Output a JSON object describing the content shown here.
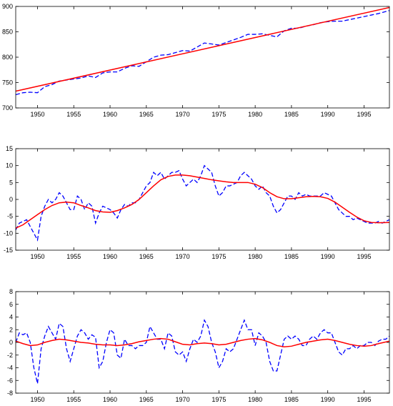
{
  "chart_data": [
    {
      "type": "line",
      "title": "",
      "xlabel": "",
      "ylabel": "",
      "xlim": [
        1947,
        1998.5
      ],
      "ylim": [
        700,
        900
      ],
      "xticks": [
        1950,
        1955,
        1960,
        1965,
        1970,
        1975,
        1980,
        1985,
        1990,
        1995
      ],
      "yticks": [
        700,
        750,
        800,
        850,
        900
      ],
      "xtick_labels": [
        "1950",
        "1955",
        "1960",
        "1965",
        "1970",
        "1975",
        "1980",
        "1985",
        "1990",
        "1995"
      ],
      "ytick_labels": [
        "700",
        "750",
        "800",
        "850",
        "900"
      ],
      "grid": false,
      "legend": "none",
      "series": [
        {
          "style": "dashed",
          "color": "#0000ff",
          "x": [
            1947,
            1948,
            1949,
            1950,
            1951,
            1952,
            1953,
            1954,
            1955,
            1956,
            1957,
            1958,
            1959,
            1960,
            1961,
            1962,
            1963,
            1964,
            1965,
            1966,
            1967,
            1968,
            1969,
            1970,
            1971,
            1972,
            1973,
            1974,
            1975,
            1976,
            1977,
            1978,
            1979,
            1980,
            1981,
            1982,
            1983,
            1984,
            1985,
            1986,
            1987,
            1988,
            1989,
            1990,
            1991,
            1992,
            1993,
            1994,
            1995,
            1996,
            1997,
            1998.5
          ],
          "y": [
            726,
            730,
            731,
            730,
            742,
            746,
            753,
            755,
            757,
            759,
            763,
            760,
            769,
            771,
            771,
            778,
            783,
            782,
            791,
            800,
            804,
            805,
            809,
            813,
            812,
            820,
            828,
            826,
            824,
            829,
            834,
            839,
            845,
            845,
            846,
            843,
            840,
            852,
            857,
            857,
            861,
            864,
            868,
            870,
            871,
            871,
            874,
            877,
            880,
            883,
            886,
            892
          ]
        },
        {
          "style": "solid",
          "color": "#ff0000",
          "x": [
            1947,
            1998.5
          ],
          "y": [
            733,
            898
          ]
        }
      ]
    },
    {
      "type": "line",
      "title": "",
      "xlabel": "",
      "ylabel": "",
      "xlim": [
        1947,
        1998.5
      ],
      "ylim": [
        -15,
        15
      ],
      "xticks": [
        1950,
        1955,
        1960,
        1965,
        1970,
        1975,
        1980,
        1985,
        1990,
        1995
      ],
      "yticks": [
        -15,
        -10,
        -5,
        0,
        5,
        10,
        15
      ],
      "xtick_labels": [
        "1950",
        "1955",
        "1960",
        "1965",
        "1970",
        "1975",
        "1980",
        "1985",
        "1990",
        "1995"
      ],
      "ytick_labels": [
        "-15",
        "-10",
        "-5",
        "0",
        "5",
        "10",
        "15"
      ],
      "grid": false,
      "legend": "none",
      "series": [
        {
          "style": "dashed",
          "color": "#0000ff",
          "x": [
            1947,
            1947.5,
            1948,
            1948.5,
            1949,
            1949.5,
            1950,
            1950.5,
            1951,
            1951.5,
            1952,
            1952.5,
            1953,
            1953.5,
            1954,
            1954.5,
            1955,
            1955.5,
            1956,
            1956.5,
            1957,
            1957.5,
            1958,
            1958.5,
            1959,
            1959.5,
            1960,
            1960.5,
            1961,
            1961.5,
            1962,
            1962.5,
            1963,
            1963.5,
            1964,
            1964.5,
            1965,
            1965.5,
            1966,
            1966.5,
            1967,
            1967.5,
            1968,
            1968.5,
            1969,
            1969.5,
            1970,
            1970.5,
            1971,
            1971.5,
            1972,
            1972.5,
            1973,
            1973.5,
            1974,
            1974.5,
            1975,
            1975.5,
            1976,
            1976.5,
            1977,
            1977.5,
            1978,
            1978.5,
            1979,
            1979.5,
            1980,
            1980.5,
            1981,
            1981.5,
            1982,
            1982.5,
            1983,
            1983.5,
            1984,
            1984.5,
            1985,
            1985.5,
            1986,
            1986.5,
            1987,
            1987.5,
            1988,
            1988.5,
            1989,
            1989.5,
            1990,
            1990.5,
            1991,
            1991.5,
            1992,
            1992.5,
            1993,
            1993.5,
            1994,
            1994.5,
            1995,
            1995.5,
            1996,
            1996.5,
            1997,
            1997.5,
            1998,
            1998.5
          ],
          "y": [
            -9,
            -7,
            -6.5,
            -6,
            -8,
            -10,
            -12,
            -5,
            -2,
            0,
            -1,
            0,
            2,
            1,
            -1,
            -3,
            -3,
            1,
            0,
            -3,
            -1,
            -2,
            -7,
            -4,
            -2,
            -2.5,
            -3,
            -4,
            -5.5,
            -3,
            -1.5,
            -2,
            -1,
            -1,
            0,
            2,
            4,
            5,
            8,
            7,
            8,
            6,
            7,
            8,
            8,
            8.5,
            6,
            4,
            5,
            6,
            5,
            7,
            10,
            9,
            8,
            4,
            1,
            2,
            4,
            4,
            4.5,
            5,
            7,
            8,
            7,
            6,
            4,
            3,
            4,
            2,
            1,
            -2,
            -4,
            -3,
            -1,
            1,
            1,
            0,
            2,
            1,
            1.5,
            1,
            1,
            1,
            1,
            2,
            1.5,
            1,
            -1,
            -3,
            -4,
            -5,
            -5,
            -6,
            -5.5,
            -6,
            -6.5,
            -7,
            -7,
            -7,
            -6.5,
            -7,
            -6.5,
            -6
          ]
        },
        {
          "style": "solid",
          "color": "#ff0000",
          "x": [
            1947,
            1948,
            1949,
            1950,
            1951,
            1952,
            1953,
            1954,
            1955,
            1956,
            1957,
            1958,
            1959,
            1960,
            1961,
            1962,
            1963,
            1964,
            1965,
            1966,
            1967,
            1968,
            1969,
            1970,
            1971,
            1972,
            1973,
            1974,
            1975,
            1976,
            1977,
            1978,
            1979,
            1980,
            1981,
            1982,
            1983,
            1984,
            1985,
            1986,
            1987,
            1988,
            1989,
            1990,
            1991,
            1992,
            1993,
            1994,
            1995,
            1996,
            1997,
            1998.5
          ],
          "y": [
            -8.5,
            -7.5,
            -6,
            -4.5,
            -3,
            -1.8,
            -1,
            -0.8,
            -1,
            -1.8,
            -2.5,
            -3.3,
            -3.7,
            -3.8,
            -3.3,
            -2.5,
            -1.5,
            0,
            2,
            4,
            5.8,
            6.8,
            7.2,
            7.2,
            7,
            6.6,
            6.2,
            5.8,
            5.5,
            5.2,
            5,
            5,
            5,
            4.5,
            3.5,
            2,
            0.8,
            0.2,
            0.2,
            0.5,
            0.8,
            0.9,
            0.8,
            0.3,
            -0.8,
            -2.3,
            -3.8,
            -5.2,
            -6.3,
            -6.8,
            -6.9,
            -6.8
          ]
        }
      ]
    },
    {
      "type": "line",
      "title": "",
      "xlabel": "",
      "ylabel": "",
      "xlim": [
        1947,
        1998.5
      ],
      "ylim": [
        -8,
        8
      ],
      "xticks": [
        1950,
        1955,
        1960,
        1965,
        1970,
        1975,
        1980,
        1985,
        1990,
        1995
      ],
      "yticks": [
        -8,
        -6,
        -4,
        -2,
        0,
        2,
        4,
        6,
        8
      ],
      "xtick_labels": [
        "1950",
        "1955",
        "1960",
        "1965",
        "1970",
        "1975",
        "1980",
        "1985",
        "1990",
        "1995"
      ],
      "ytick_labels": [
        "-8",
        "-6",
        "-4",
        "-2",
        "0",
        "2",
        "4",
        "6",
        "8"
      ],
      "grid": false,
      "legend": "none",
      "series": [
        {
          "style": "dashed",
          "color": "#0000ff",
          "x": [
            1947,
            1947.5,
            1948,
            1948.5,
            1949,
            1949.5,
            1950,
            1950.5,
            1951,
            1951.5,
            1952,
            1952.5,
            1953,
            1953.5,
            1954,
            1954.5,
            1955,
            1955.5,
            1956,
            1956.5,
            1957,
            1957.5,
            1958,
            1958.5,
            1959,
            1959.5,
            1960,
            1960.5,
            1961,
            1961.5,
            1962,
            1962.5,
            1963,
            1963.5,
            1964,
            1964.5,
            1965,
            1965.5,
            1966,
            1966.5,
            1967,
            1967.5,
            1968,
            1968.5,
            1969,
            1969.5,
            1970,
            1970.5,
            1971,
            1971.5,
            1972,
            1972.5,
            1973,
            1973.5,
            1974,
            1974.5,
            1975,
            1975.5,
            1976,
            1976.5,
            1977,
            1977.5,
            1978,
            1978.5,
            1979,
            1979.5,
            1980,
            1980.5,
            1981,
            1981.5,
            1982,
            1982.5,
            1983,
            1983.5,
            1984,
            1984.5,
            1985,
            1985.5,
            1986,
            1986.5,
            1987,
            1987.5,
            1988,
            1988.5,
            1989,
            1989.5,
            1990,
            1990.5,
            1991,
            1991.5,
            1992,
            1992.5,
            1993,
            1993.5,
            1994,
            1994.5,
            1995,
            1995.5,
            1996,
            1996.5,
            1997,
            1997.5,
            1998,
            1998.5
          ],
          "y": [
            0,
            1.5,
            1.2,
            1.5,
            0,
            -4,
            -6.5,
            -1,
            1,
            2.5,
            1.5,
            0.5,
            3,
            2.5,
            -1,
            -3,
            -1,
            1,
            2,
            1.5,
            0.5,
            1.2,
            0.8,
            -4,
            -3,
            0,
            2,
            1.5,
            -2,
            -2.5,
            0.5,
            -0.5,
            -0.5,
            -1,
            -0.5,
            -0.5,
            0,
            2.5,
            1.5,
            0.5,
            0.5,
            -1,
            1.5,
            1,
            -1.5,
            -2,
            -1.5,
            -3,
            -1,
            0.5,
            0,
            1,
            3.5,
            2.5,
            0,
            -1.5,
            -4,
            -3,
            -1,
            -1.5,
            -1,
            0.5,
            2,
            3.5,
            2,
            2,
            -0.5,
            1.5,
            1,
            0,
            -3,
            -4.5,
            -4.5,
            -2,
            0.5,
            1,
            0.5,
            1,
            0.5,
            -0.5,
            -0.5,
            0.5,
            1,
            0.5,
            1.5,
            2,
            1.5,
            1.5,
            0,
            -1.5,
            -2,
            -1,
            -1,
            -0.5,
            -1,
            -0.5,
            -0.5,
            0,
            0,
            -0.5,
            0.2,
            0.5,
            0.5,
            1
          ]
        },
        {
          "style": "solid",
          "color": "#ff0000",
          "x": [
            1947,
            1948,
            1949,
            1950,
            1951,
            1952,
            1953,
            1954,
            1955,
            1956,
            1957,
            1958,
            1959,
            1960,
            1961,
            1962,
            1963,
            1964,
            1965,
            1966,
            1967,
            1968,
            1969,
            1970,
            1971,
            1972,
            1973,
            1974,
            1975,
            1976,
            1977,
            1978,
            1979,
            1980,
            1981,
            1982,
            1983,
            1984,
            1985,
            1986,
            1987,
            1988,
            1989,
            1990,
            1991,
            1992,
            1993,
            1994,
            1995,
            1996,
            1997,
            1998.5
          ],
          "y": [
            0.2,
            -0.2,
            -0.5,
            -0.4,
            0,
            0.3,
            0.5,
            0.4,
            0.2,
            0,
            -0.1,
            -0.3,
            -0.4,
            -0.4,
            -0.5,
            -0.4,
            -0.2,
            0.1,
            0.3,
            0.5,
            0.6,
            0.5,
            0.1,
            -0.3,
            -0.4,
            -0.2,
            -0.1,
            -0.2,
            -0.4,
            -0.3,
            0,
            0.3,
            0.5,
            0.6,
            0.4,
            0,
            -0.5,
            -0.7,
            -0.6,
            -0.3,
            0,
            0.2,
            0.4,
            0.5,
            0.3,
            0,
            -0.3,
            -0.5,
            -0.6,
            -0.5,
            -0.2,
            0.2
          ]
        }
      ]
    }
  ]
}
